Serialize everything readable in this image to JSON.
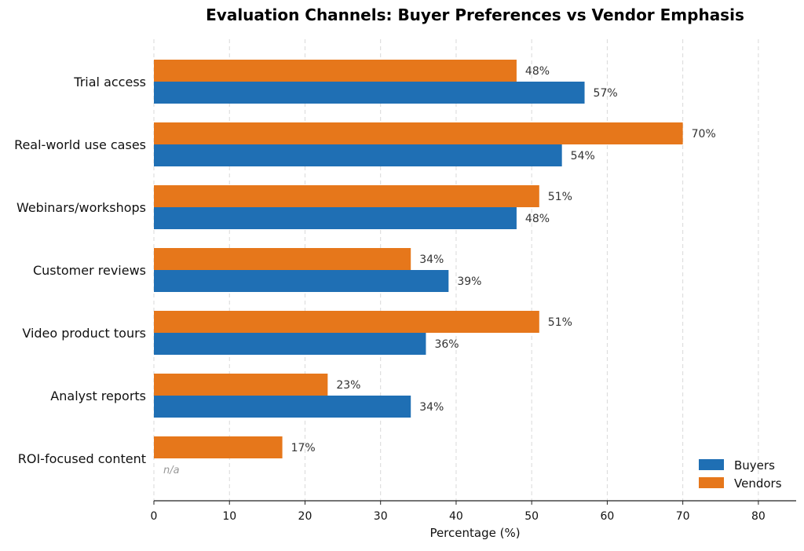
{
  "chart_data": {
    "type": "bar",
    "orientation": "horizontal",
    "title": "Evaluation Channels: Buyer Preferences vs Vendor Emphasis",
    "xlabel": "Percentage (%)",
    "ylabel": "",
    "xlim": [
      0,
      85
    ],
    "xticks": [
      0,
      10,
      20,
      30,
      40,
      50,
      60,
      70,
      80
    ],
    "grid": "x-dashed",
    "legend_position": "bottom-right",
    "categories": [
      "Trial access",
      "Real-world use cases",
      "Webinars/workshops",
      "Customer reviews",
      "Video product tours",
      "Analyst reports",
      "ROI-focused content"
    ],
    "series": [
      {
        "name": "Buyers",
        "color": "#1f6fb4",
        "values": [
          57,
          54,
          48,
          39,
          36,
          34,
          null
        ]
      },
      {
        "name": "Vendors",
        "color": "#e6771b",
        "values": [
          48,
          70,
          51,
          34,
          51,
          23,
          17
        ]
      }
    ],
    "value_suffix": "%",
    "missing_label": "n/a"
  }
}
